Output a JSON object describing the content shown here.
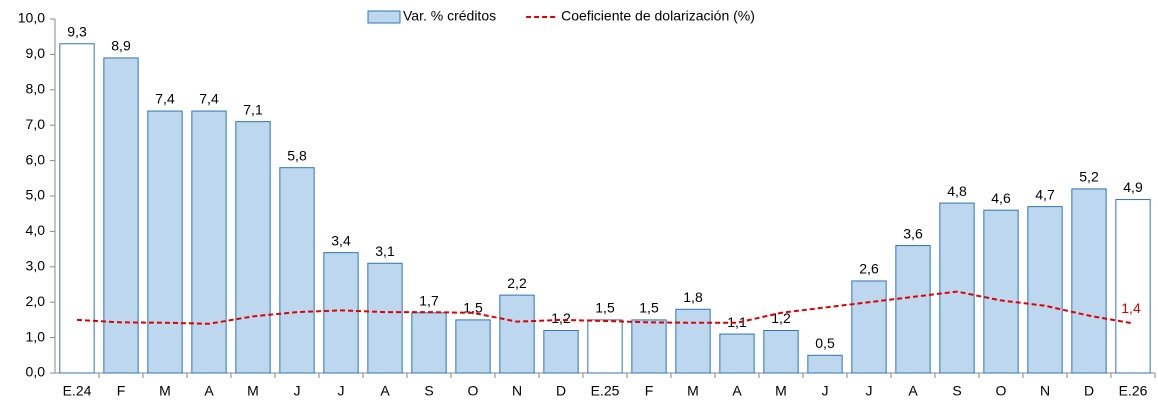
{
  "chart_data": {
    "type": "bar-line",
    "categories": [
      "E.24",
      "F",
      "M",
      "A",
      "M",
      "J",
      "J",
      "A",
      "S",
      "O",
      "N",
      "D",
      "E.25",
      "F",
      "M",
      "A",
      "M",
      "J",
      "J",
      "A",
      "S",
      "O",
      "N",
      "D",
      "E.26"
    ],
    "series": [
      {
        "name": "Var. % créditos",
        "type": "bar",
        "color": "#bdd7ee",
        "edge_color": "#2e75b6",
        "bar_colors": [
          "#ffffff",
          "#bdd7ee",
          "#bdd7ee",
          "#bdd7ee",
          "#bdd7ee",
          "#bdd7ee",
          "#bdd7ee",
          "#bdd7ee",
          "#bdd7ee",
          "#bdd7ee",
          "#bdd7ee",
          "#bdd7ee",
          "#ffffff",
          "#bdd7ee",
          "#bdd7ee",
          "#bdd7ee",
          "#bdd7ee",
          "#bdd7ee",
          "#bdd7ee",
          "#bdd7ee",
          "#bdd7ee",
          "#bdd7ee",
          "#bdd7ee",
          "#bdd7ee",
          "#ffffff"
        ],
        "values": [
          9.3,
          8.9,
          7.4,
          7.4,
          7.1,
          5.8,
          3.4,
          3.1,
          1.7,
          1.5,
          2.2,
          1.2,
          1.5,
          1.5,
          1.8,
          1.1,
          1.2,
          0.5,
          2.6,
          3.6,
          4.8,
          4.6,
          4.7,
          5.2,
          4.9
        ],
        "value_labels": [
          "9,3",
          "8,9",
          "7,4",
          "7,4",
          "7,1",
          "5,8",
          "3,4",
          "3,1",
          "1,7",
          "1,5",
          "2,2",
          "1,2",
          "1,5",
          "1,5",
          "1,8",
          "1,1",
          "1,2",
          "0,5",
          "2,6",
          "3,6",
          "4,8",
          "4,6",
          "4,7",
          "5,2",
          "4,9"
        ]
      },
      {
        "name": "Coeficiente de dolarización (%)",
        "type": "line",
        "color": "#e00000",
        "dashed": true,
        "values": [
          1.5,
          1.43,
          1.42,
          1.39,
          1.6,
          1.72,
          1.77,
          1.72,
          1.72,
          1.7,
          1.45,
          1.5,
          1.47,
          1.43,
          1.42,
          1.42,
          1.7,
          1.85,
          2.0,
          2.15,
          2.3,
          2.05,
          1.9,
          1.62,
          1.4
        ],
        "value_labels": [
          null,
          null,
          null,
          null,
          null,
          null,
          null,
          null,
          null,
          null,
          null,
          null,
          null,
          null,
          null,
          null,
          null,
          null,
          null,
          null,
          null,
          null,
          null,
          null,
          "1,4"
        ]
      }
    ],
    "ylim": [
      0,
      10
    ],
    "yticks": [
      {
        "value": 0,
        "label": "0,0"
      },
      {
        "value": 1,
        "label": "1,0"
      },
      {
        "value": 2,
        "label": "2,0"
      },
      {
        "value": 3,
        "label": "3,0"
      },
      {
        "value": 4,
        "label": "4,0"
      },
      {
        "value": 5,
        "label": "5,0"
      },
      {
        "value": 6,
        "label": "6,0"
      },
      {
        "value": 7,
        "label": "7,0"
      },
      {
        "value": 8,
        "label": "8,0"
      },
      {
        "value": 9,
        "label": "9,0"
      },
      {
        "value": 10,
        "label": "10,0"
      }
    ],
    "grid": false,
    "legend": "top"
  }
}
